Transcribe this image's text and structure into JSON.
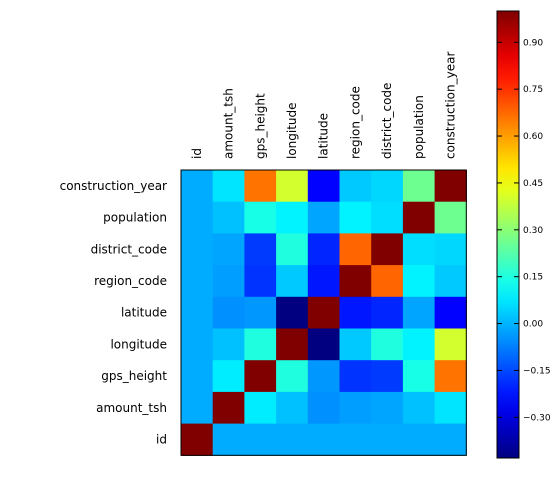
{
  "chart_data": {
    "type": "heatmap",
    "title": "",
    "variables": [
      "id",
      "amount_tsh",
      "gps_height",
      "longitude",
      "latitude",
      "region_code",
      "district_code",
      "population",
      "construction_year"
    ],
    "row_order": [
      "construction_year",
      "population",
      "district_code",
      "region_code",
      "latitude",
      "longitude",
      "gps_height",
      "amount_tsh",
      "id"
    ],
    "column_order": [
      "id",
      "amount_tsh",
      "gps_height",
      "longitude",
      "latitude",
      "region_code",
      "district_code",
      "population",
      "construction_year"
    ],
    "matrix": [
      [
        1.0,
        -0.01,
        -0.01,
        -0.01,
        -0.01,
        -0.01,
        -0.01,
        -0.01,
        -0.01
      ],
      [
        -0.01,
        1.0,
        0.08,
        0.02,
        -0.05,
        -0.03,
        -0.02,
        0.02,
        0.07
      ],
      [
        -0.01,
        0.08,
        1.0,
        0.15,
        -0.04,
        -0.18,
        -0.17,
        0.14,
        0.66
      ],
      [
        -0.01,
        0.02,
        0.15,
        1.0,
        -0.43,
        0.03,
        0.15,
        0.09,
        0.4
      ],
      [
        -0.01,
        -0.05,
        -0.04,
        -0.43,
        1.0,
        -0.22,
        -0.2,
        -0.02,
        -0.25
      ],
      [
        -0.01,
        -0.03,
        -0.18,
        0.03,
        -0.22,
        1.0,
        0.68,
        0.09,
        0.03
      ],
      [
        -0.01,
        -0.02,
        -0.17,
        0.15,
        -0.2,
        0.68,
        1.0,
        0.06,
        0.05
      ],
      [
        -0.01,
        0.02,
        0.14,
        0.09,
        -0.02,
        0.09,
        0.06,
        1.0,
        0.26
      ],
      [
        -0.01,
        0.07,
        0.66,
        0.4,
        -0.25,
        0.03,
        0.05,
        0.26,
        1.0
      ]
    ],
    "colormap": "jet",
    "colorbar": {
      "min": -0.43,
      "max": 1.0,
      "ticks": [
        0.9,
        0.75,
        0.6,
        0.45,
        0.3,
        0.15,
        0.0,
        -0.15,
        -0.3
      ],
      "tick_labels": [
        "0.90",
        "0.75",
        "0.60",
        "0.45",
        "0.30",
        "0.15",
        "0.00",
        "−0.15",
        "−0.30"
      ]
    },
    "grid": false
  }
}
